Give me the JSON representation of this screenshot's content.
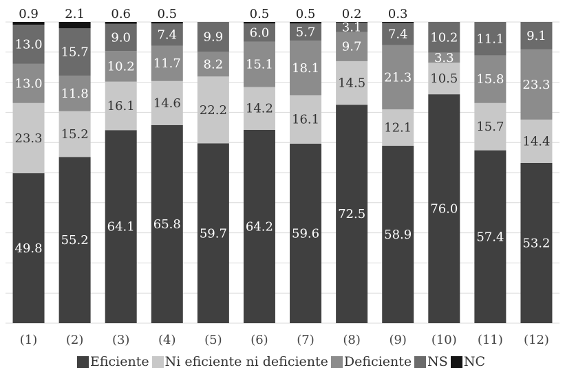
{
  "chart_data": {
    "type": "bar",
    "stacked": true,
    "categories": [
      "(1)",
      "(2)",
      "(3)",
      "(4)",
      "(5)",
      "(6)",
      "(7)",
      "(8)",
      "(9)",
      "(10)",
      "(11)",
      "(12)"
    ],
    "ylim": [
      0,
      100
    ],
    "grid": true,
    "legend_position": "bottom",
    "series": [
      {
        "name": "Eficiente",
        "color": "#404040",
        "values": [
          49.8,
          55.2,
          64.1,
          65.8,
          59.7,
          64.2,
          59.6,
          72.5,
          58.9,
          76.0,
          57.4,
          53.2
        ]
      },
      {
        "name": "Ni eficiente ni deficiente",
        "color": "#c8c8c8",
        "values": [
          23.3,
          15.2,
          16.1,
          14.6,
          22.2,
          14.2,
          16.1,
          14.5,
          12.1,
          10.5,
          15.7,
          14.4
        ]
      },
      {
        "name": "Deficiente",
        "color": "#8c8c8c",
        "values": [
          13.0,
          11.8,
          10.2,
          11.7,
          8.2,
          15.1,
          18.1,
          9.7,
          21.3,
          3.3,
          15.8,
          23.3
        ]
      },
      {
        "name": "NS",
        "color": "#6b6b6b",
        "values": [
          13.0,
          15.7,
          9.0,
          7.4,
          9.9,
          6.0,
          5.7,
          3.1,
          7.4,
          10.2,
          11.1,
          9.1
        ]
      },
      {
        "name": "NC",
        "color": "#141414",
        "values": [
          0.9,
          2.1,
          0.6,
          0.5,
          null,
          0.5,
          0.5,
          0.2,
          0.3,
          null,
          null,
          null
        ]
      }
    ]
  }
}
